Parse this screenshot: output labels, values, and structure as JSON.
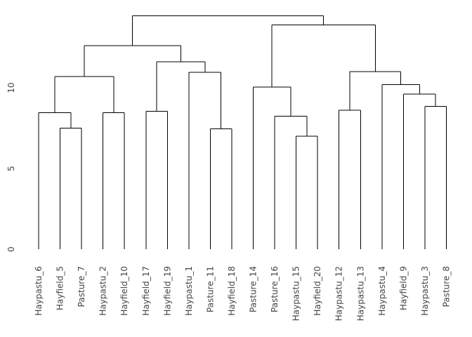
{
  "chart_data": {
    "type": "dendrogram",
    "title": "",
    "xlabel": "",
    "ylabel": "",
    "orientation": "vertical",
    "grid": false,
    "legend": null,
    "yticks": [
      0,
      5,
      10
    ],
    "ylim": [
      0,
      14.5
    ],
    "line_color": "#000000",
    "text_color": "#454545",
    "background": "#ffffff",
    "leaf_order": [
      "Haypastu_6",
      "Hayfield_5",
      "Pasture_7",
      "Haypastu_2",
      "Hayfield_10",
      "Hayfield_17",
      "Hayfield_19",
      "Haypastu_1",
      "Pasture_11",
      "Hayfield_18",
      "Pasture_14",
      "Pasture_16",
      "Haypastu_15",
      "Hayfield_20",
      "Haypastu_12",
      "Haypastu_13",
      "Haypastu_4",
      "Hayfield_9",
      "Haypastu_3",
      "Pasture_8"
    ],
    "tree": {
      "height": 14.45,
      "children": [
        {
          "height": 12.6,
          "children": [
            {
              "height": 10.7,
              "children": [
                {
                  "height": 8.45,
                  "children": [
                    {
                      "leaf": "Haypastu_6"
                    },
                    {
                      "height": 7.5,
                      "children": [
                        {
                          "leaf": "Hayfield_5"
                        },
                        {
                          "leaf": "Pasture_7"
                        }
                      ]
                    }
                  ]
                },
                {
                  "height": 8.45,
                  "children": [
                    {
                      "leaf": "Haypastu_2"
                    },
                    {
                      "leaf": "Hayfield_10"
                    }
                  ]
                }
              ]
            },
            {
              "height": 11.6,
              "children": [
                {
                  "height": 8.55,
                  "children": [
                    {
                      "leaf": "Hayfield_17"
                    },
                    {
                      "leaf": "Hayfield_19"
                    }
                  ]
                },
                {
                  "height": 10.95,
                  "children": [
                    {
                      "leaf": "Haypastu_1"
                    },
                    {
                      "height": 7.45,
                      "children": [
                        {
                          "leaf": "Pasture_11"
                        },
                        {
                          "leaf": "Hayfield_18"
                        }
                      ]
                    }
                  ]
                }
              ]
            }
          ]
        },
        {
          "height": 13.9,
          "children": [
            {
              "height": 10.05,
              "children": [
                {
                  "leaf": "Pasture_14"
                },
                {
                  "height": 8.25,
                  "children": [
                    {
                      "leaf": "Pasture_16"
                    },
                    {
                      "height": 7.0,
                      "children": [
                        {
                          "leaf": "Haypastu_15"
                        },
                        {
                          "leaf": "Hayfield_20"
                        }
                      ]
                    }
                  ]
                }
              ]
            },
            {
              "height": 11.0,
              "children": [
                {
                  "height": 8.6,
                  "children": [
                    {
                      "leaf": "Haypastu_12"
                    },
                    {
                      "leaf": "Haypastu_13"
                    }
                  ]
                },
                {
                  "height": 10.2,
                  "children": [
                    {
                      "leaf": "Haypastu_4"
                    },
                    {
                      "height": 9.6,
                      "children": [
                        {
                          "leaf": "Hayfield_9"
                        },
                        {
                          "height": 8.85,
                          "children": [
                            {
                              "leaf": "Haypastu_3"
                            },
                            {
                              "leaf": "Pasture_8"
                            }
                          ]
                        }
                      ]
                    }
                  ]
                }
              ]
            }
          ]
        }
      ]
    }
  }
}
